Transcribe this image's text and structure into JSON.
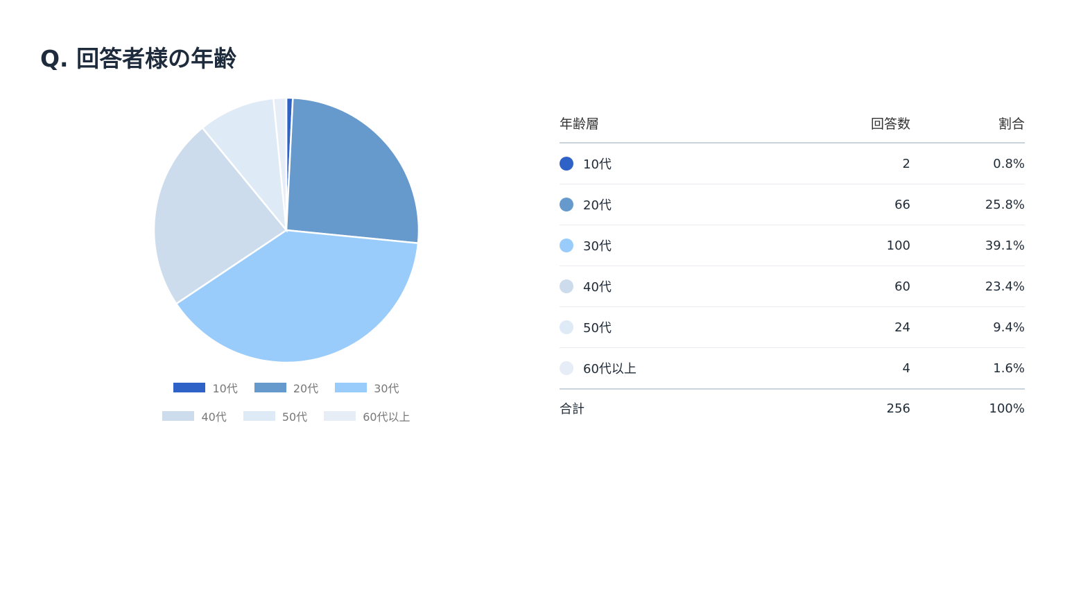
{
  "title": "Q. 回答者様の年齢",
  "chart_data": {
    "type": "pie",
    "title": "Q. 回答者様の年齢",
    "categories": [
      "10代",
      "20代",
      "30代",
      "40代",
      "50代",
      "60代以上"
    ],
    "values": [
      2,
      66,
      100,
      60,
      24,
      4
    ],
    "percentages": [
      "0.8%",
      "25.8%",
      "39.1%",
      "23.4%",
      "9.4%",
      "1.6%"
    ],
    "colors": [
      "#2f62c6",
      "#6699cc",
      "#99ccfa",
      "#ccdcec",
      "#deeaf6",
      "#e6edf7"
    ],
    "legend_position": "bottom",
    "start": "12 o'clock, clockwise"
  },
  "table": {
    "headers": [
      "年齢層",
      "回答数",
      "割合"
    ],
    "rows": [
      {
        "label": "10代",
        "count": "2",
        "pct": "0.8%"
      },
      {
        "label": "20代",
        "count": "66",
        "pct": "25.8%"
      },
      {
        "label": "30代",
        "count": "100",
        "pct": "39.1%"
      },
      {
        "label": "40代",
        "count": "60",
        "pct": "23.4%"
      },
      {
        "label": "50代",
        "count": "24",
        "pct": "9.4%"
      },
      {
        "label": "60代以上",
        "count": "4",
        "pct": "1.6%"
      }
    ],
    "total": {
      "label": "合計",
      "count": "256",
      "pct": "100%"
    }
  }
}
